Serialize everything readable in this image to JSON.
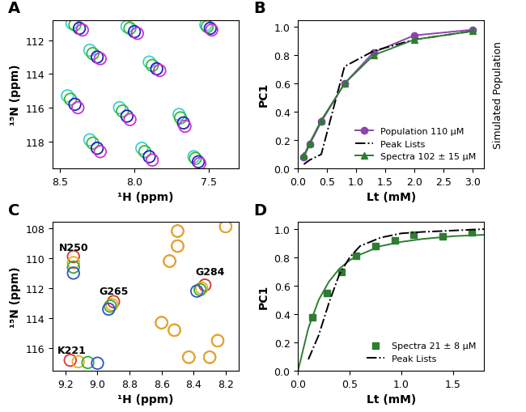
{
  "chart_data": [
    {
      "type": "scatter",
      "title": "A",
      "x_label": "¹H (ppm)",
      "y_label": "¹⁵N (ppm)",
      "xlim": [
        8.55,
        7.3
      ],
      "ylim": [
        119.6,
        110.8
      ],
      "xticks": [
        8.5,
        8.0,
        7.5
      ],
      "yticks": [
        112,
        114,
        116,
        118
      ],
      "marker": "circle",
      "series": [
        {
          "color": "#40d0d0",
          "x": [
            8.42,
            8.05,
            7.52,
            8.3,
            7.9,
            8.45,
            8.1,
            7.7,
            8.3,
            7.95,
            7.6
          ],
          "values": [
            111.0,
            111.2,
            111.1,
            112.6,
            113.3,
            115.3,
            116.0,
            116.4,
            117.9,
            118.4,
            118.9
          ]
        },
        {
          "color": "#33bb33",
          "x": [
            8.4,
            8.03,
            7.51,
            8.28,
            7.88,
            8.43,
            8.08,
            7.69,
            8.28,
            7.93,
            7.59
          ],
          "values": [
            111.1,
            111.3,
            111.2,
            112.8,
            113.5,
            115.5,
            116.2,
            116.6,
            118.1,
            118.6,
            119.0
          ]
        },
        {
          "color": "#2020c0",
          "x": [
            8.37,
            8.0,
            7.49,
            8.25,
            7.85,
            8.4,
            8.05,
            7.67,
            8.25,
            7.9,
            7.57
          ],
          "values": [
            111.3,
            111.5,
            111.3,
            113.0,
            113.7,
            115.8,
            116.5,
            116.9,
            118.4,
            118.9,
            119.2
          ]
        },
        {
          "color": "#cc33cc",
          "x": [
            8.35,
            7.98,
            7.48,
            8.23,
            7.83,
            8.38,
            8.03,
            7.66,
            8.23,
            7.88,
            7.56
          ],
          "values": [
            111.4,
            111.6,
            111.4,
            113.1,
            113.8,
            116.0,
            116.7,
            117.1,
            118.6,
            119.1,
            119.3
          ]
        }
      ]
    },
    {
      "type": "line",
      "title": "B",
      "x_label": "Lt (mM)",
      "y_label": "PC1",
      "xlim": [
        0,
        3.2
      ],
      "ylim": [
        0,
        1.05
      ],
      "xticks": [
        0.0,
        0.5,
        1.0,
        1.5,
        2.0,
        2.5,
        3.0
      ],
      "yticks": [
        0.0,
        0.2,
        0.4,
        0.6,
        0.8,
        1.0
      ],
      "legend": "lower right",
      "annotations": [
        {
          "text": "Simulated Population"
        }
      ],
      "series": [
        {
          "name": "Population 110 μM",
          "color": "#8e44ad",
          "marker": "circle",
          "line_style": "solid",
          "x": [
            0.1,
            0.2,
            0.4,
            0.8,
            1.3,
            2.0,
            3.0
          ],
          "values": [
            0.08,
            0.17,
            0.33,
            0.6,
            0.82,
            0.94,
            0.98
          ]
        },
        {
          "name": "Peak Lists",
          "color": "#000000",
          "marker": "none",
          "line_style": "dashdot",
          "x": [
            0.1,
            0.2,
            0.4,
            0.8,
            1.3,
            2.0,
            3.0
          ],
          "values": [
            0.03,
            0.06,
            0.1,
            0.72,
            0.83,
            0.91,
            0.97
          ]
        },
        {
          "name": "Spectra 102 ± 15 μM",
          "color": "#2e7d32",
          "marker": "triangle",
          "line_style": "solid",
          "x": [
            0.1,
            0.2,
            0.4,
            0.8,
            1.3,
            2.0,
            3.0
          ],
          "values": [
            0.09,
            0.18,
            0.34,
            0.6,
            0.8,
            0.91,
            0.97
          ]
        }
      ]
    },
    {
      "type": "scatter",
      "title": "C",
      "x_label": "¹H (ppm)",
      "y_label": "¹⁵N (ppm)",
      "xlim": [
        9.28,
        8.12
      ],
      "ylim": [
        117.5,
        107.6
      ],
      "xticks": [
        9.2,
        9.0,
        8.8,
        8.6,
        8.4,
        8.2
      ],
      "yticks": [
        108,
        110,
        112,
        114,
        116
      ],
      "marker": "circle",
      "annotations": [
        {
          "text": "N250",
          "x": 9.15,
          "y": 109.3
        },
        {
          "text": "G265",
          "x": 8.9,
          "y": 112.2
        },
        {
          "text": "G284",
          "x": 8.3,
          "y": 110.9
        },
        {
          "text": "K221",
          "x": 9.16,
          "y": 116.1
        }
      ],
      "series": [
        {
          "color": "#e03030",
          "x": [
            9.15,
            8.9,
            8.33,
            9.17,
            8.5,
            8.5,
            8.2,
            8.6,
            8.52,
            8.43,
            8.3,
            8.25,
            8.55
          ],
          "values": [
            109.9,
            112.9,
            111.8,
            116.8,
            108.2,
            109.2,
            107.9,
            114.3,
            114.8,
            116.6,
            116.6,
            115.5,
            110.2
          ]
        },
        {
          "color": "#e0b020",
          "x": [
            9.15,
            8.91,
            8.35,
            9.12,
            8.5,
            8.5,
            8.2,
            8.6,
            8.52,
            8.43,
            8.3,
            8.25,
            8.55
          ],
          "values": [
            110.3,
            113.1,
            112.0,
            116.9,
            108.2,
            109.2,
            107.9,
            114.3,
            114.8,
            116.6,
            116.6,
            115.5,
            110.2
          ]
        },
        {
          "color": "#30b030",
          "x": [
            9.15,
            8.92,
            8.36,
            9.06
          ],
          "values": [
            110.6,
            113.2,
            112.1,
            116.95
          ]
        },
        {
          "color": "#3050d0",
          "x": [
            9.15,
            8.93,
            8.38,
            9.0
          ],
          "values": [
            111.0,
            113.4,
            112.2,
            117.0
          ]
        }
      ]
    },
    {
      "type": "line",
      "title": "D",
      "x_label": "Lt (mM)",
      "y_label": "PC1",
      "xlim": [
        0,
        1.8
      ],
      "ylim": [
        0,
        1.05
      ],
      "xticks": [
        0.0,
        0.5,
        1.0,
        1.5
      ],
      "yticks": [
        0.0,
        0.2,
        0.4,
        0.6,
        0.8,
        1.0
      ],
      "legend": "lower right",
      "series": [
        {
          "name": "Spectra 21 ± 8 μM",
          "color": "#2e7d32",
          "marker": "square",
          "line_style": "none",
          "x": [
            0.14,
            0.28,
            0.42,
            0.56,
            0.75,
            0.94,
            1.12,
            1.4,
            1.68
          ],
          "values": [
            0.38,
            0.55,
            0.7,
            0.81,
            0.88,
            0.92,
            0.96,
            0.95,
            0.98
          ]
        },
        {
          "color": "#2e7d32",
          "marker": "none",
          "line_style": "solid",
          "x": [
            0,
            0.1,
            0.2,
            0.3,
            0.4,
            0.5,
            0.6,
            0.8,
            1.0,
            1.2,
            1.5,
            1.8
          ],
          "values": [
            0,
            0.3,
            0.5,
            0.63,
            0.72,
            0.78,
            0.82,
            0.88,
            0.91,
            0.93,
            0.95,
            0.96
          ]
        },
        {
          "name": "Peak Lists",
          "color": "#000000",
          "marker": "none",
          "line_style": "dashdot",
          "x": [
            0.1,
            0.2,
            0.3,
            0.4,
            0.5,
            0.6,
            0.8,
            1.0,
            1.2,
            1.5,
            1.8
          ],
          "values": [
            0.08,
            0.25,
            0.48,
            0.68,
            0.8,
            0.88,
            0.94,
            0.97,
            0.98,
            0.99,
            1.0
          ]
        }
      ]
    }
  ]
}
